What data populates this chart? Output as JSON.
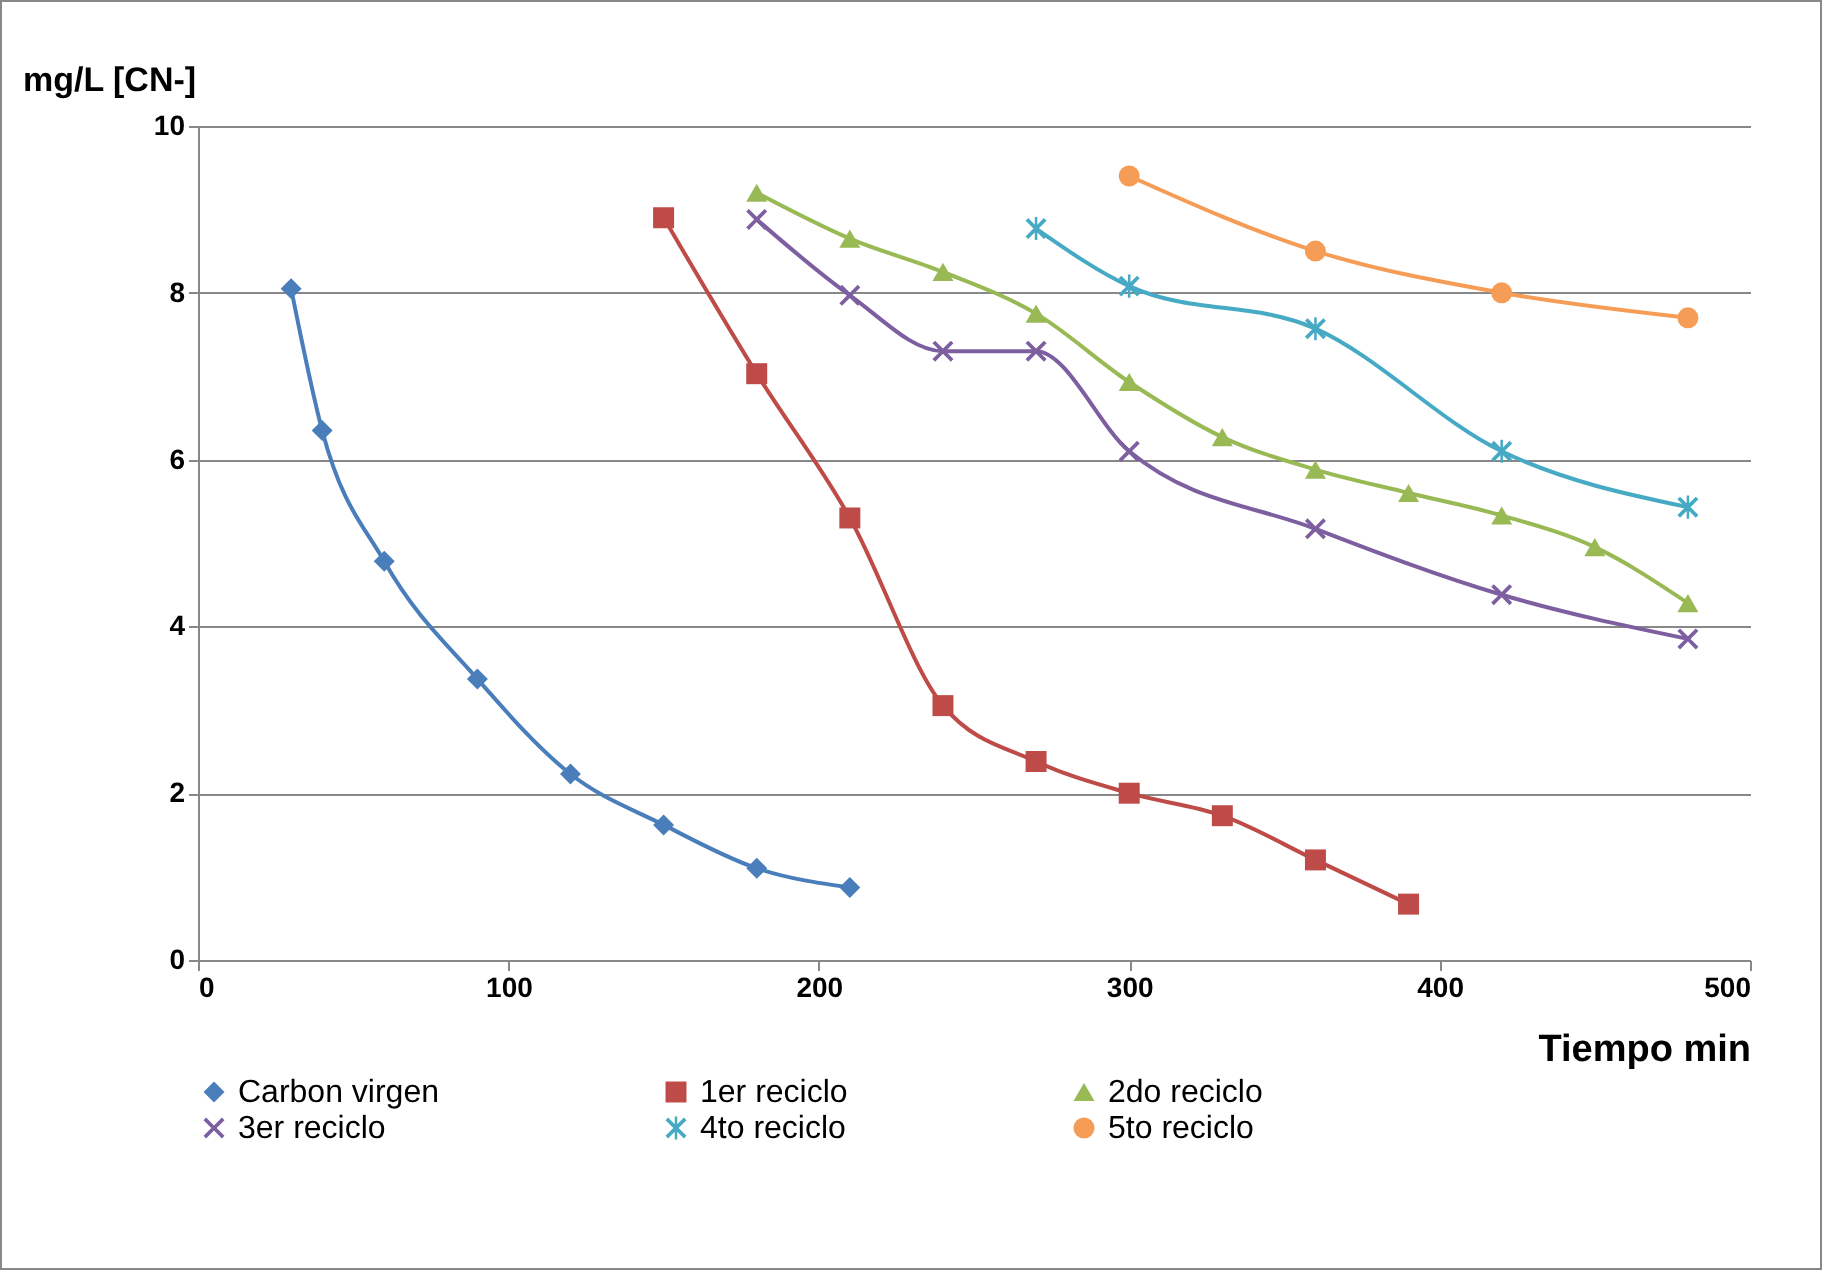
{
  "chart_data": {
    "type": "line",
    "xlabel": "Tiempo min",
    "ylabel": "mg/L [CN-]",
    "xlim": [
      0,
      500
    ],
    "ylim": [
      0,
      10
    ],
    "xticks": [
      0,
      100,
      200,
      300,
      400,
      500
    ],
    "yticks": [
      0,
      2,
      4,
      6,
      8,
      10
    ],
    "grid": "y",
    "legend": "bottom",
    "series": [
      {
        "name": "Carbon virgen",
        "color": "#4a7ebb",
        "marker": "diamond",
        "x": [
          30,
          40,
          60,
          90,
          120,
          150,
          180,
          210
        ],
        "values": [
          8.05,
          6.35,
          4.78,
          3.37,
          2.23,
          1.62,
          1.1,
          0.87
        ]
      },
      {
        "name": "1er reciclo",
        "color": "#be4b48",
        "marker": "square",
        "x": [
          150,
          180,
          210,
          240,
          270,
          300,
          330,
          360,
          390
        ],
        "values": [
          8.9,
          7.03,
          5.3,
          3.05,
          2.38,
          2.0,
          1.73,
          1.2,
          0.67
        ]
      },
      {
        "name": "2do reciclo",
        "color": "#98b954",
        "marker": "triangle",
        "x": [
          180,
          210,
          240,
          270,
          300,
          330,
          360,
          390,
          420,
          450,
          480
        ],
        "values": [
          9.2,
          8.65,
          8.25,
          7.75,
          6.93,
          6.27,
          5.88,
          5.6,
          5.33,
          4.95,
          4.28
        ]
      },
      {
        "name": "3er reciclo",
        "color": "#7d5fa0",
        "marker": "cross",
        "x": [
          180,
          210,
          240,
          270,
          300,
          360,
          420,
          480
        ],
        "values": [
          8.88,
          7.97,
          7.3,
          7.3,
          6.1,
          5.17,
          4.38,
          3.85
        ]
      },
      {
        "name": "4to reciclo",
        "color": "#46aac5",
        "marker": "star",
        "x": [
          270,
          300,
          360,
          420,
          480
        ],
        "values": [
          8.77,
          8.08,
          7.57,
          6.1,
          5.43
        ]
      },
      {
        "name": "5to reciclo",
        "color": "#f59d56",
        "marker": "circle",
        "x": [
          300,
          360,
          420,
          480
        ],
        "values": [
          9.4,
          8.5,
          8.0,
          7.7
        ]
      }
    ]
  }
}
